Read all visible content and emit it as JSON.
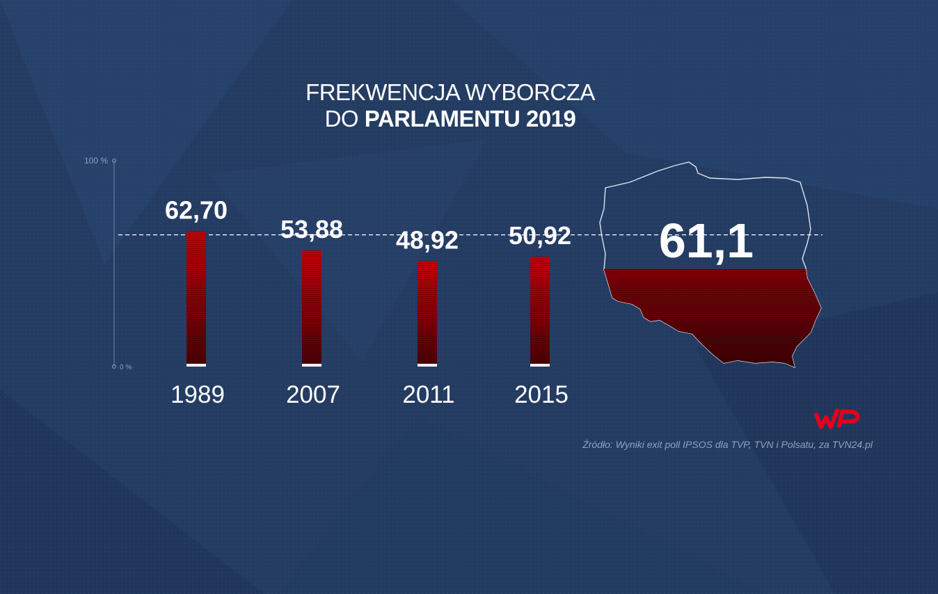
{
  "title": {
    "line1": "FREKWENCJA WYBORCZA",
    "line2_prefix": "DO ",
    "line2_bold": "PARLAMENTU 2019"
  },
  "chart_data": {
    "type": "bar",
    "categories": [
      "1989",
      "2007",
      "2011",
      "2015"
    ],
    "values": [
      62.7,
      53.88,
      48.92,
      50.92
    ],
    "value_labels": [
      "62,70",
      "53,88",
      "48,92",
      "50,92"
    ],
    "ylim": [
      0,
      100
    ],
    "y_tick_labels": [
      "0 %",
      "100 %"
    ],
    "grid": false,
    "highlight": {
      "value": 61.1,
      "label": "61,1"
    }
  },
  "logo": {
    "text": "WP"
  },
  "source": "Źródło: Wyniki exit poll IPSOS dla TVP, TVN i Polsatu, za TVN24.pl",
  "colors": {
    "background": "#243c62",
    "bar_top": "#c8000a",
    "bar_bottom": "#4a0005",
    "text": "#ffffff",
    "source_text": "#8fa2c0"
  }
}
